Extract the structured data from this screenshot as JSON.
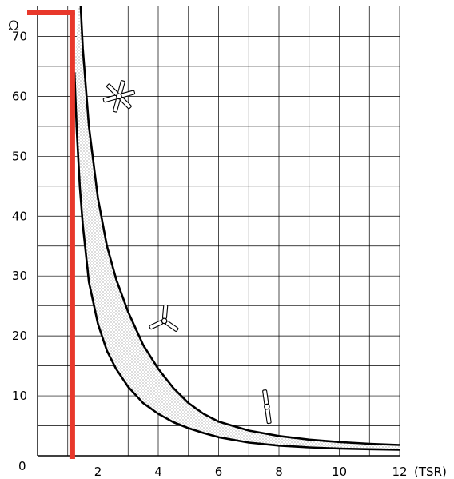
{
  "chart_data": {
    "type": "area",
    "ylabel": "Ω",
    "xunit": "(TSR)",
    "xlim": [
      0,
      12
    ],
    "ylim": [
      0,
      75
    ],
    "x_ticks": [
      "2",
      "4",
      "6",
      "8",
      "10",
      "12"
    ],
    "x_tick_values": [
      2,
      4,
      6,
      8,
      10,
      12
    ],
    "y_ticks": [
      "10",
      "20",
      "30",
      "40",
      "50",
      "60",
      "70"
    ],
    "y_tick_values": [
      10,
      20,
      30,
      40,
      50,
      60,
      70
    ],
    "origin_label": "0",
    "grid": true,
    "series": [
      {
        "x": [
          1.22,
          1.3,
          1.4,
          1.5,
          1.7,
          2.0,
          2.3,
          2.6,
          3.0,
          3.5,
          4.0,
          4.5,
          5.0,
          5.5,
          6.0,
          7.0,
          8.0,
          9.0,
          10.0,
          11.0,
          12.0
        ],
        "y": [
          64,
          54,
          45,
          38.5,
          29,
          22,
          17.5,
          14.5,
          11.5,
          8.8,
          7.0,
          5.6,
          4.6,
          3.8,
          3.1,
          2.2,
          1.7,
          1.4,
          1.2,
          1.1,
          1.0
        ]
      },
      {
        "x": [
          1.4,
          1.5,
          1.7,
          2.0,
          2.3,
          2.6,
          3.0,
          3.5,
          4.0,
          4.5,
          5.0,
          5.5,
          6.0,
          7.0,
          8.0,
          9.0,
          10.0,
          11.0,
          12.0
        ],
        "y": [
          78,
          68,
          55,
          43,
          35,
          29.5,
          24,
          18.5,
          14.5,
          11.3,
          8.8,
          7.0,
          5.7,
          4.2,
          3.3,
          2.7,
          2.3,
          2.0,
          1.8
        ]
      }
    ],
    "highlight": {
      "x": 1.15,
      "y": 74,
      "color": "#e8382b"
    },
    "colors": {
      "curve": "#000000",
      "shade": "#e8e8e8",
      "grid": "#000000",
      "highlight": "#e8382b"
    },
    "icons": [
      {
        "name": "multi-blade-rotor-icon",
        "x": 2.7,
        "y": 60
      },
      {
        "name": "three-blade-rotor-icon",
        "x": 4.2,
        "y": 22.5
      },
      {
        "name": "two-blade-rotor-icon",
        "x": 7.6,
        "y": 8.2
      }
    ]
  }
}
